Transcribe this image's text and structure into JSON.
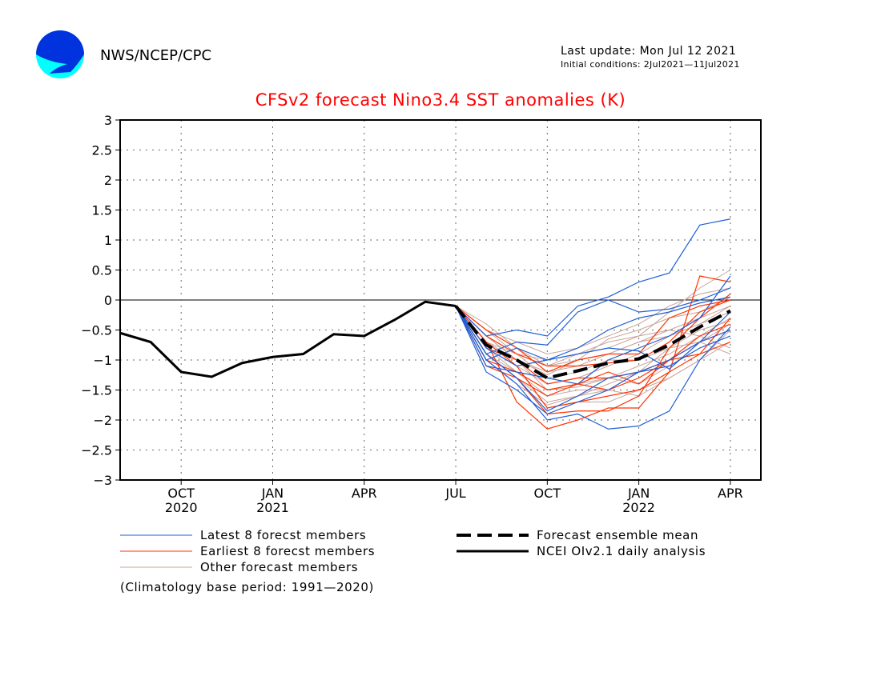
{
  "header": {
    "logo_text": "NOAA",
    "organization": "NWS/NCEP/CPC",
    "last_update": "Last update: Mon Jul 12 2021",
    "initial_conditions": "Initial conditions: 2Jul2021—11Jul2021"
  },
  "colors": {
    "title": "#ff0000",
    "latest": "#1f5fd6",
    "earliest": "#ff3300",
    "other": "#c8a49a",
    "observed": "#000000",
    "mean": "#000000"
  },
  "chart_data": {
    "type": "line",
    "title": "CFSv2 forecast Nino3.4 SST anomalies (K)",
    "xlim": [
      "2020-08",
      "2022-05"
    ],
    "ylim": [
      -3,
      3
    ],
    "yticks": [
      3,
      2.5,
      2,
      1.5,
      1,
      0.5,
      0,
      -0.5,
      -1,
      -1.5,
      -2,
      -2.5,
      -3
    ],
    "ytick_labels": [
      "3",
      "2.5",
      "2",
      "1.5",
      "1",
      "0.5",
      "0",
      "−0.5",
      "−1",
      "−1.5",
      "−2",
      "−2.5",
      "−3"
    ],
    "xticks": [
      {
        "x": "2020-10",
        "label": "OCT",
        "year": "2020"
      },
      {
        "x": "2021-01",
        "label": "JAN",
        "year": "2021"
      },
      {
        "x": "2021-04",
        "label": "APR",
        "year": ""
      },
      {
        "x": "2021-07",
        "label": "JUL",
        "year": ""
      },
      {
        "x": "2021-10",
        "label": "OCT",
        "year": ""
      },
      {
        "x": "2022-01",
        "label": "JAN",
        "year": "2022"
      },
      {
        "x": "2022-04",
        "label": "APR",
        "year": ""
      }
    ],
    "grid": true,
    "zero_line": true,
    "observed": {
      "name": "NCEI OIv2.1 daily analysis",
      "x": [
        "2020-08",
        "2020-09",
        "2020-10",
        "2020-11",
        "2020-12",
        "2021-01",
        "2021-02",
        "2021-03",
        "2021-04",
        "2021-05",
        "2021-06",
        "2021-07"
      ],
      "y": [
        -0.55,
        -0.7,
        -1.2,
        -1.28,
        -1.05,
        -0.95,
        -0.9,
        -0.57,
        -0.6,
        -0.33,
        -0.03,
        -0.1
      ]
    },
    "forecast_x": [
      "2021-07",
      "2021-08",
      "2021-09",
      "2021-10",
      "2021-11",
      "2021-12",
      "2022-01",
      "2022-02",
      "2022-03",
      "2022-04"
    ],
    "ensemble_mean": {
      "name": "Forecast ensemble mean",
      "y": [
        -0.1,
        -0.75,
        -1.0,
        -1.3,
        -1.18,
        -1.05,
        -0.98,
        -0.75,
        -0.45,
        -0.18
      ]
    },
    "latest_members": {
      "name": "Latest 8 forecst members",
      "series": [
        [
          -0.1,
          -0.6,
          -0.5,
          -0.6,
          -0.1,
          0.05,
          0.3,
          0.45,
          1.25,
          1.35
        ],
        [
          -0.1,
          -0.9,
          -0.7,
          -0.75,
          -0.2,
          0.0,
          -0.2,
          -0.15,
          0.0,
          0.2
        ],
        [
          -0.1,
          -1.0,
          -0.8,
          -1.0,
          -0.8,
          -0.5,
          -0.3,
          -0.2,
          -0.05,
          0.05
        ],
        [
          -0.1,
          -1.1,
          -1.2,
          -1.3,
          -1.4,
          -1.0,
          -0.8,
          -0.6,
          -0.3,
          0.4
        ],
        [
          -0.1,
          -1.2,
          -1.5,
          -1.9,
          -1.7,
          -1.5,
          -1.2,
          -1.0,
          -0.7,
          -0.5
        ],
        [
          -0.1,
          -1.0,
          -1.4,
          -2.0,
          -1.9,
          -2.15,
          -2.1,
          -1.85,
          -1.0,
          -0.45
        ],
        [
          -0.1,
          -0.9,
          -1.3,
          -1.85,
          -1.6,
          -1.3,
          -1.2,
          -1.1,
          -0.8,
          -0.6
        ],
        [
          -0.1,
          -0.8,
          -1.1,
          -1.0,
          -0.9,
          -0.8,
          -0.85,
          -1.15,
          -0.7,
          -0.2
        ]
      ]
    },
    "earliest_members": {
      "name": "Earliest 8 forecst members",
      "series": [
        [
          -0.1,
          -0.7,
          -1.7,
          -2.15,
          -2.0,
          -1.8,
          -1.8,
          -1.2,
          0.4,
          0.3
        ],
        [
          -0.1,
          -0.9,
          -1.3,
          -1.9,
          -1.85,
          -1.85,
          -1.6,
          -0.8,
          -0.3,
          0.1
        ],
        [
          -0.1,
          -0.8,
          -1.0,
          -1.4,
          -1.3,
          -1.3,
          -1.2,
          -1.0,
          -0.6,
          -0.4
        ],
        [
          -0.1,
          -0.6,
          -0.9,
          -1.1,
          -1.1,
          -1.05,
          -1.0,
          -0.7,
          -0.2,
          0.0
        ],
        [
          -0.1,
          -1.0,
          -1.2,
          -1.5,
          -1.4,
          -1.2,
          -1.4,
          -1.0,
          -0.7,
          -0.5
        ],
        [
          -0.1,
          -0.7,
          -1.1,
          -1.8,
          -1.7,
          -1.6,
          -1.5,
          -1.2,
          -0.9,
          -0.7
        ],
        [
          -0.1,
          -0.5,
          -0.8,
          -1.2,
          -1.0,
          -0.9,
          -0.9,
          -0.3,
          -0.1,
          0.0
        ],
        [
          -0.1,
          -1.1,
          -1.3,
          -1.6,
          -1.4,
          -1.5,
          -1.3,
          -1.0,
          -0.9,
          -0.3
        ]
      ]
    },
    "other_members": {
      "name": "Other forecast members",
      "series": [
        [
          -0.1,
          -0.4,
          -0.8,
          -1.1,
          -0.9,
          -0.8,
          -0.6,
          -0.2,
          0.2,
          0.5
        ],
        [
          -0.1,
          -0.6,
          -1.0,
          -1.2,
          -1.1,
          -0.9,
          -0.7,
          -0.5,
          -0.3,
          -0.1
        ],
        [
          -0.1,
          -0.7,
          -1.1,
          -1.4,
          -1.3,
          -1.1,
          -0.9,
          -0.6,
          -0.4,
          -0.2
        ],
        [
          -0.1,
          -0.8,
          -1.2,
          -1.5,
          -1.4,
          -1.3,
          -1.1,
          -0.9,
          -0.6,
          -0.3
        ],
        [
          -0.1,
          -0.9,
          -1.3,
          -1.7,
          -1.6,
          -1.4,
          -1.2,
          -1.0,
          -0.7,
          -0.4
        ],
        [
          -0.1,
          -0.5,
          -0.9,
          -1.0,
          -0.9,
          -0.7,
          -0.6,
          -0.5,
          -0.6,
          -0.8
        ],
        [
          -0.1,
          -0.6,
          -0.9,
          -1.3,
          -1.2,
          -1.0,
          -1.0,
          -0.8,
          -0.7,
          -0.9
        ],
        [
          -0.1,
          -0.9,
          -1.2,
          -1.6,
          -1.5,
          -1.5,
          -1.6,
          -1.3,
          -1.0,
          -0.7
        ],
        [
          -0.1,
          -0.7,
          -1.0,
          -1.5,
          -1.45,
          -1.3,
          -1.4,
          -1.1,
          -0.8,
          -0.6
        ],
        [
          -0.1,
          -0.5,
          -0.7,
          -0.9,
          -0.8,
          -0.6,
          -0.4,
          -0.1,
          0.1,
          0.2
        ],
        [
          -0.1,
          -0.8,
          -1.1,
          -1.8,
          -1.7,
          -1.7,
          -1.5,
          -1.3,
          -1.0,
          -0.5
        ],
        [
          -0.1,
          -0.6,
          -1.0,
          -1.25,
          -1.0,
          -0.65,
          -0.5,
          -0.3,
          -0.2,
          0.05
        ],
        [
          -0.1,
          -1.0,
          -1.4,
          -1.75,
          -1.6,
          -1.5,
          -1.2,
          -0.8,
          -0.5,
          -0.35
        ],
        [
          -0.1,
          -0.7,
          -0.9,
          -1.1,
          -1.0,
          -0.9,
          -0.7,
          -0.6,
          -0.4,
          -0.1
        ]
      ]
    },
    "legend": {
      "placement": "bottom",
      "items": [
        "Latest 8 forecst members",
        "Earliest 8 forecst members",
        "Other forecast members",
        "Forecast ensemble mean",
        "NCEI OIv2.1 daily analysis"
      ]
    },
    "note": "(Climatology base period: 1991—2020)"
  }
}
